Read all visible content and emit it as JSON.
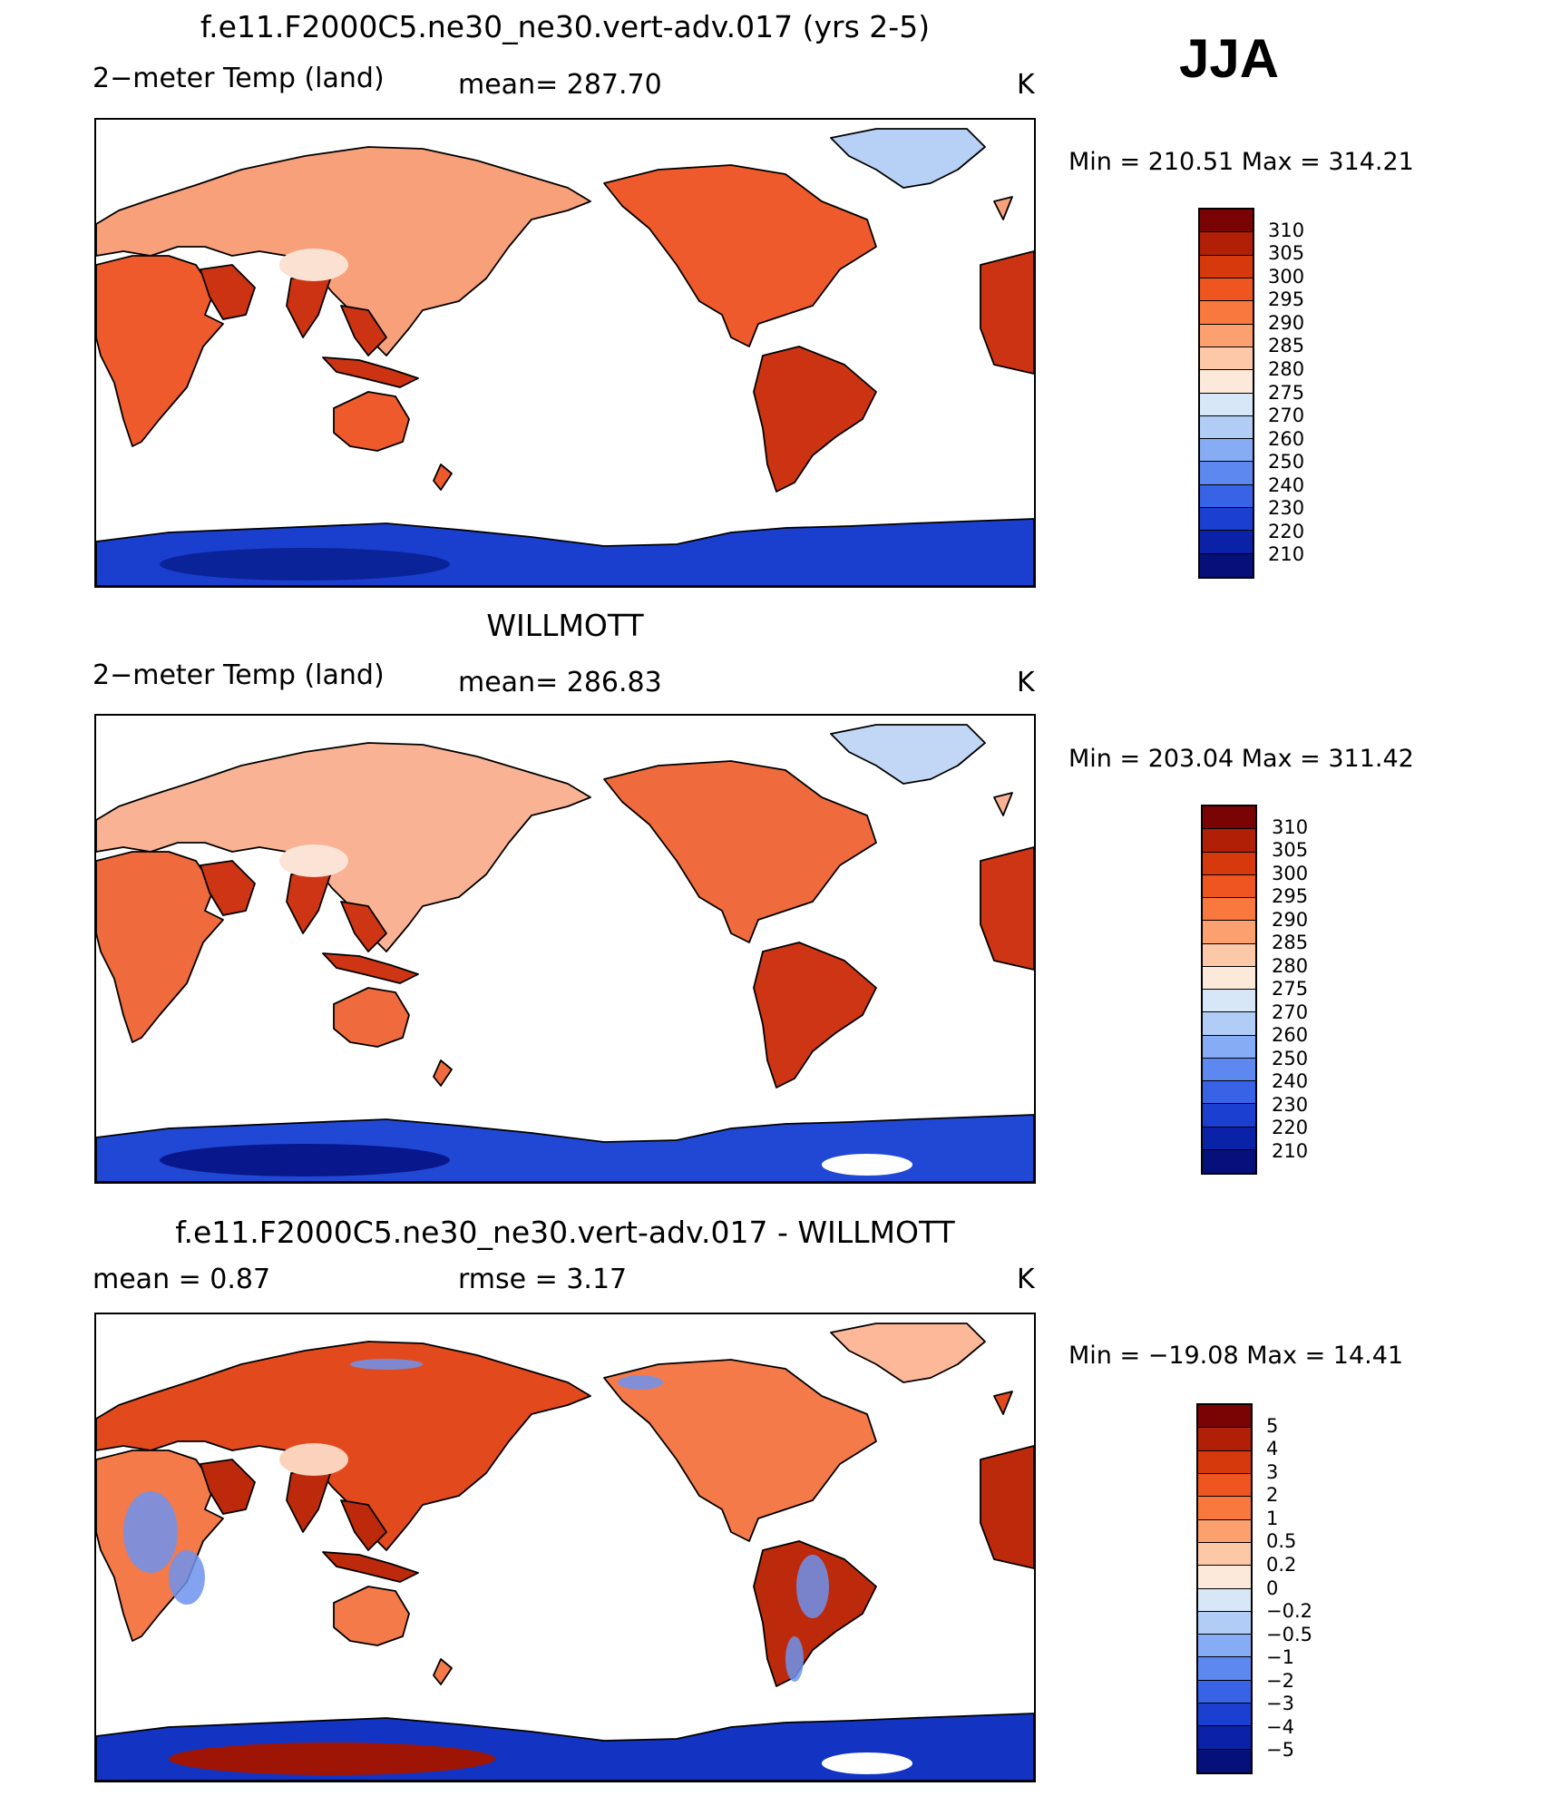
{
  "season": "JJA",
  "panels": [
    {
      "title": "f.e11.F2000C5.ne30_ne30.vert-adv.017 (yrs 2-5)",
      "left_label": "2−meter Temp (land)",
      "mid_label": "mean=  287.70",
      "unit": "K",
      "minmax": "Min  =  210.51  Max  =  314.21",
      "colorbar_labels": [
        "310",
        "305",
        "300",
        "295",
        "290",
        "285",
        "280",
        "275",
        "270",
        "260",
        "250",
        "240",
        "230",
        "220",
        "210"
      ]
    },
    {
      "title": "WILLMOTT",
      "left_label": "2−meter Temp (land)",
      "mid_label": "mean=  286.83",
      "unit": "K",
      "minmax": "Min  =  203.04  Max  =  311.42",
      "colorbar_labels": [
        "310",
        "305",
        "300",
        "295",
        "290",
        "285",
        "280",
        "275",
        "270",
        "260",
        "250",
        "240",
        "230",
        "220",
        "210"
      ]
    },
    {
      "title": "f.e11.F2000C5.ne30_ne30.vert-adv.017 - WILLMOTT",
      "left_label": "mean =     0.87",
      "mid_label": "rmse =     3.17",
      "unit": "K",
      "minmax": "Min  =  −19.08  Max  =    14.41",
      "colorbar_labels": [
        "5",
        "4",
        "3",
        "2",
        "1",
        "0.5",
        "0.2",
        "0",
        "−0.2",
        "−0.5",
        "−1",
        "−2",
        "−3",
        "−4",
        "−5"
      ]
    }
  ],
  "colorbar_colors": [
    "#7a0403",
    "#b01f06",
    "#d63a0c",
    "#ee5520",
    "#f9783e",
    "#fda06f",
    "#fdc8a8",
    "#fde9d9",
    "#d7e7f7",
    "#b1cdf5",
    "#86acf5",
    "#5c88f0",
    "#3863e6",
    "#1b3fd0",
    "#0a22a8",
    "#05107a"
  ],
  "land_colors": {
    "model": {
      "north": "#f7a07a",
      "mid": "#ee5a2b",
      "hot": "#cc3313",
      "plateau": "#fbe1d2",
      "ice": "#b7d0f5",
      "antarctica": "#1a3fcf",
      "antarctica_deep": "#0b2399"
    },
    "obs": {
      "north": "#f9b394",
      "mid": "#ef6a3c",
      "hot": "#cd3514",
      "plateau": "#fbe3d6",
      "ice": "#c2d7f6",
      "antarctica": "#2048d4",
      "antarctica_deep": "#08188c"
    },
    "diff": {
      "north": "#e24a1d",
      "mid": "#f47a4a",
      "hot": "#bd2a0b",
      "plateau": "#fbd3bd",
      "ice": "#fdb89a",
      "antarctica": "#1334c2",
      "antarctica_deep": "#9e1505",
      "blue": "#6d93ee"
    }
  }
}
